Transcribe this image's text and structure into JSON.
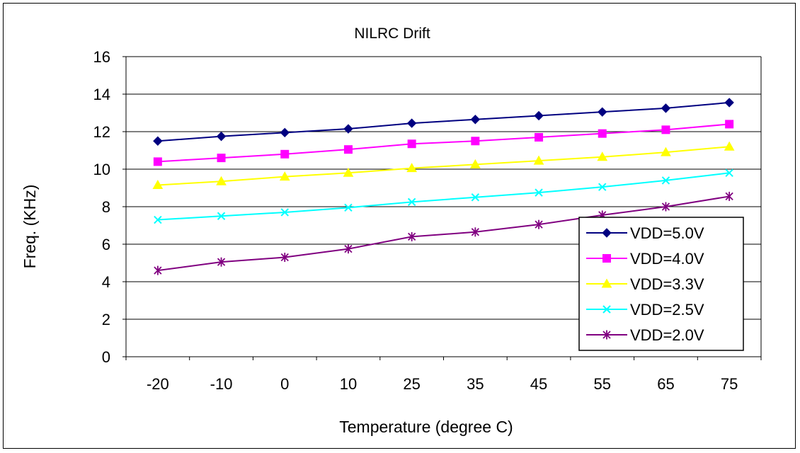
{
  "chart_data": {
    "type": "line",
    "title": "NILRC Drift",
    "xlabel": "Temperature (degree C)",
    "ylabel": "Freq. (KHz)",
    "categories": [
      "-20",
      "-10",
      "0",
      "10",
      "25",
      "35",
      "45",
      "55",
      "65",
      "75"
    ],
    "ylim": [
      0,
      16
    ],
    "yticks": [
      0,
      2,
      4,
      6,
      8,
      10,
      12,
      14,
      16
    ],
    "grid": true,
    "legend_position": "bottom-right",
    "series": [
      {
        "name": "VDD=5.0V",
        "color": "#000080",
        "marker": "diamond",
        "values": [
          11.5,
          11.75,
          11.95,
          12.15,
          12.45,
          12.65,
          12.85,
          13.05,
          13.25,
          13.55
        ]
      },
      {
        "name": "VDD=4.0V",
        "color": "#ff00ff",
        "marker": "square",
        "values": [
          10.4,
          10.6,
          10.8,
          11.05,
          11.35,
          11.5,
          11.7,
          11.9,
          12.1,
          12.4
        ]
      },
      {
        "name": "VDD=3.3V",
        "color": "#ffff00",
        "marker": "triangle",
        "values": [
          9.15,
          9.35,
          9.6,
          9.8,
          10.05,
          10.25,
          10.45,
          10.65,
          10.9,
          11.2
        ]
      },
      {
        "name": "VDD=2.5V",
        "color": "#00ffff",
        "marker": "x",
        "values": [
          7.3,
          7.5,
          7.7,
          7.95,
          8.25,
          8.5,
          8.75,
          9.05,
          9.4,
          9.8
        ]
      },
      {
        "name": "VDD=2.0V",
        "color": "#800080",
        "marker": "asterisk",
        "values": [
          4.6,
          5.05,
          5.3,
          5.75,
          6.4,
          6.65,
          7.05,
          7.55,
          8.0,
          8.55
        ]
      }
    ]
  }
}
